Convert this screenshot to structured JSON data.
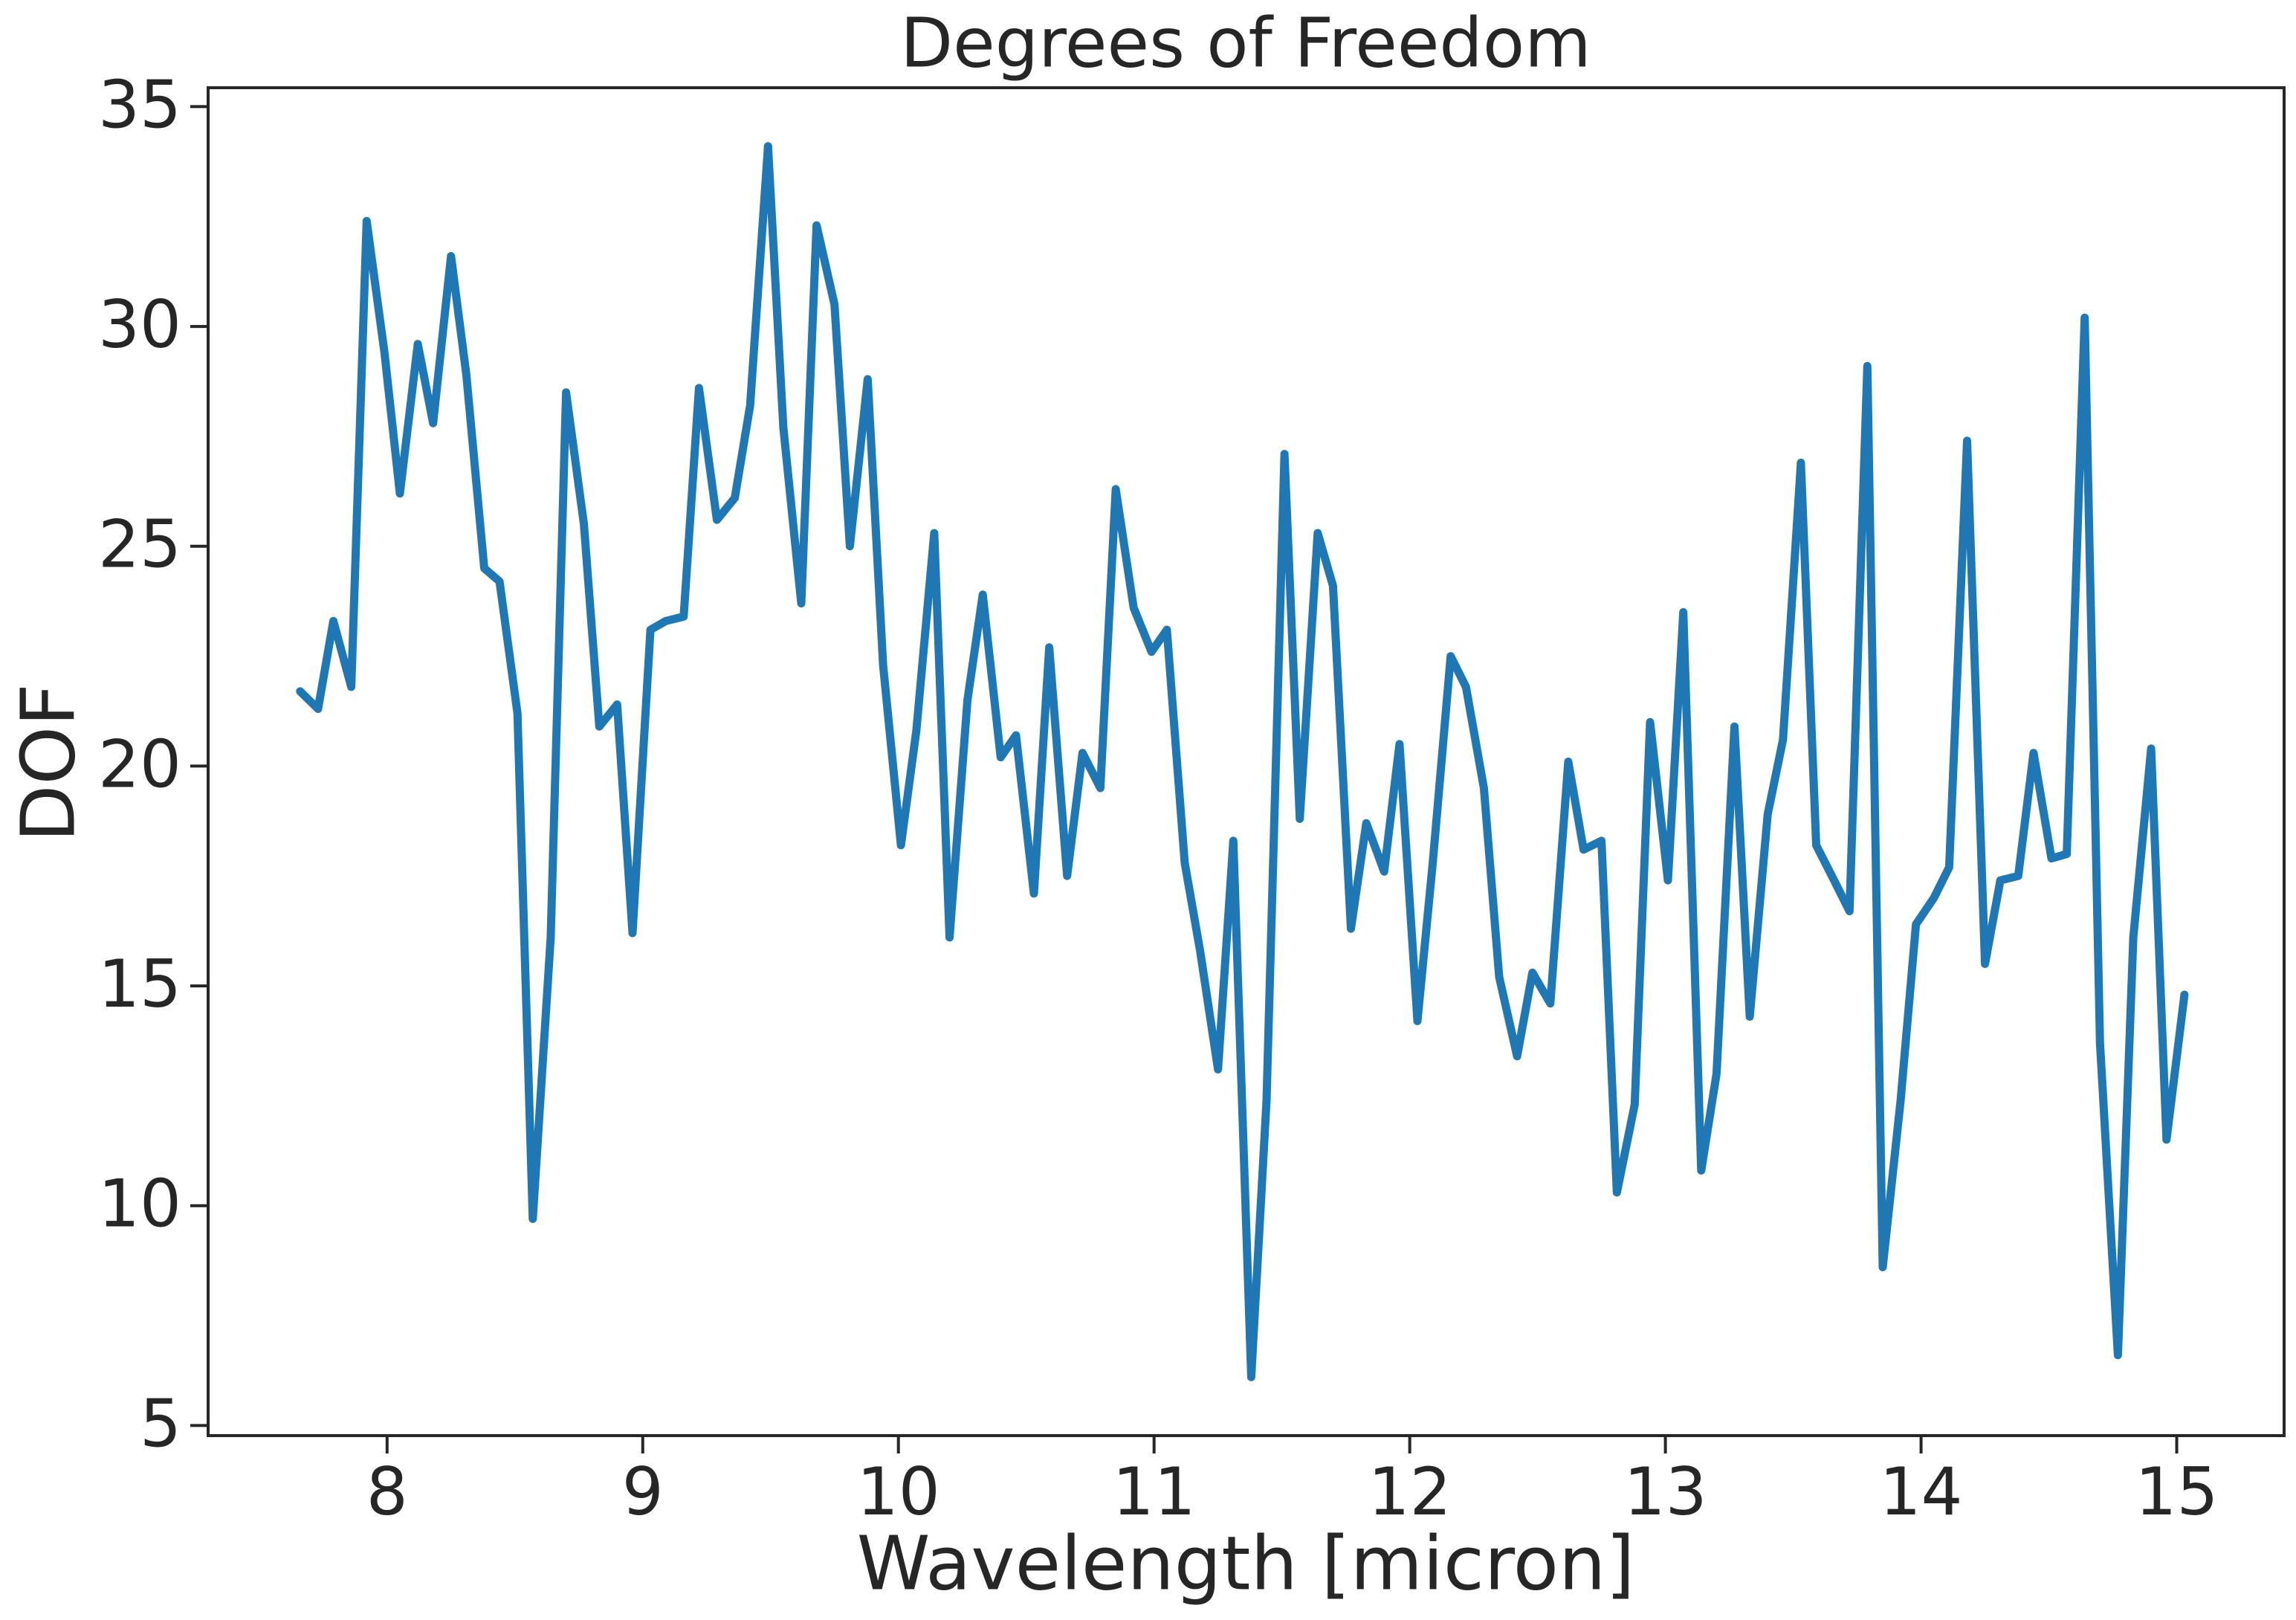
{
  "chart_data": {
    "type": "line",
    "title": "Degrees of Freedom",
    "x_label": "Wavelength [micron]",
    "y_label": "DOF",
    "x": [
      7.66,
      7.73,
      7.79,
      7.86,
      7.92,
      7.99,
      8.05,
      8.12,
      8.18,
      8.25,
      8.31,
      8.38,
      8.44,
      8.51,
      8.57,
      8.64,
      8.7,
      8.77,
      8.83,
      8.9,
      8.96,
      9.03,
      9.09,
      9.16,
      9.22,
      9.29,
      9.36,
      9.42,
      9.49,
      9.55,
      9.62,
      9.68,
      9.75,
      9.81,
      9.88,
      9.94,
      10.01,
      10.07,
      10.14,
      10.2,
      10.27,
      10.33,
      10.4,
      10.46,
      10.53,
      10.59,
      10.66,
      10.72,
      10.79,
      10.85,
      10.92,
      10.99,
      11.05,
      11.12,
      11.18,
      11.25,
      11.31,
      11.38,
      11.44,
      11.51,
      11.57,
      11.64,
      11.7,
      11.77,
      11.83,
      11.9,
      11.96,
      12.03,
      12.09,
      12.16,
      12.22,
      12.29,
      12.35,
      12.42,
      12.48,
      12.55,
      12.62,
      12.68,
      12.75,
      12.81,
      12.88,
      12.94,
      13.01,
      13.07,
      13.14,
      13.2,
      13.27,
      13.33,
      13.4,
      13.46,
      13.53,
      13.59,
      13.66,
      13.72,
      13.79,
      13.85,
      13.92,
      13.98,
      14.05,
      14.11,
      14.18,
      14.25,
      14.31,
      14.38,
      14.44,
      14.51,
      14.57,
      14.64,
      14.7,
      14.77,
      14.83,
      14.9,
      14.96,
      15.03
    ],
    "series": [
      {
        "name": "DOF",
        "color": "#1f77b4",
        "values": [
          21.7,
          21.3,
          23.3,
          21.8,
          32.4,
          29.4,
          26.2,
          29.6,
          27.8,
          31.6,
          28.9,
          24.5,
          24.2,
          21.2,
          9.7,
          16.1,
          28.5,
          25.5,
          20.9,
          21.4,
          16.2,
          23.1,
          23.3,
          23.4,
          28.6,
          25.6,
          26.1,
          28.2,
          34.1,
          27.7,
          23.7,
          32.3,
          30.5,
          25.0,
          28.8,
          22.3,
          18.2,
          20.8,
          25.3,
          16.1,
          21.5,
          23.9,
          20.2,
          20.7,
          17.1,
          22.7,
          17.5,
          20.3,
          19.5,
          26.3,
          23.6,
          22.6,
          23.1,
          17.8,
          15.8,
          13.1,
          18.3,
          6.1,
          12.4,
          27.1,
          18.8,
          25.3,
          24.1,
          16.3,
          18.7,
          17.6,
          20.5,
          14.2,
          17.8,
          22.5,
          21.8,
          19.5,
          15.2,
          13.4,
          15.3,
          14.6,
          20.1,
          18.1,
          18.3,
          10.3,
          12.3,
          21.0,
          17.4,
          23.5,
          10.8,
          13.0,
          20.9,
          14.3,
          18.9,
          20.6,
          26.9,
          18.2,
          17.4,
          16.7,
          29.1,
          8.6,
          12.4,
          16.4,
          17.0,
          17.7,
          27.4,
          15.5,
          17.4,
          17.5,
          20.3,
          17.9,
          18.0,
          30.2,
          13.7,
          6.6,
          16.1,
          20.4,
          11.5,
          14.8
        ]
      }
    ],
    "xlim": [
      7.3,
      15.42
    ],
    "xticks": [
      8,
      9,
      10,
      11,
      12,
      13,
      14,
      15
    ],
    "ylim": [
      4.77,
      35.43
    ],
    "yticks": [
      5,
      10,
      15,
      20,
      25,
      30,
      35
    ],
    "grid": false
  }
}
